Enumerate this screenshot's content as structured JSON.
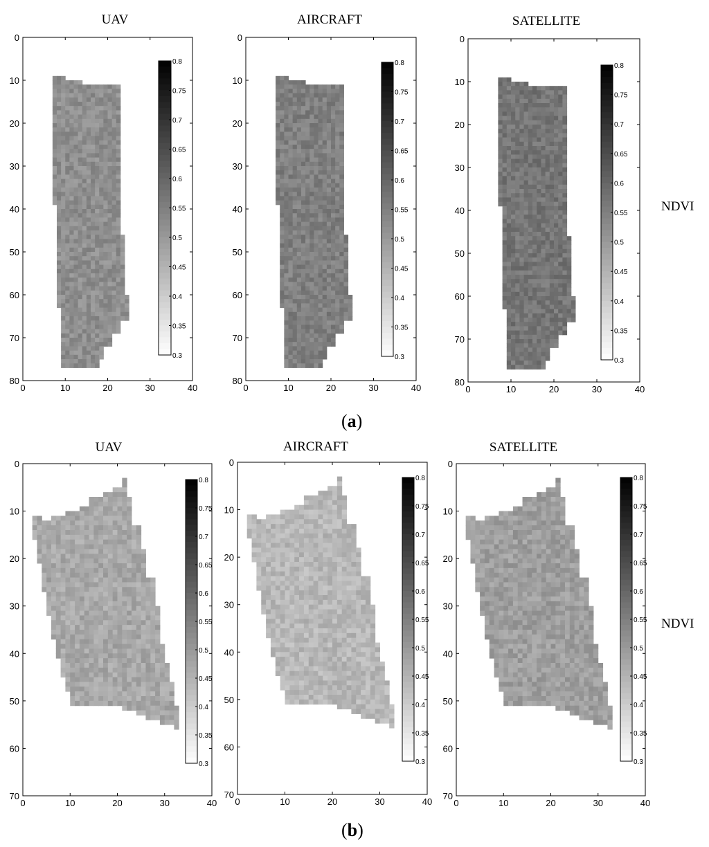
{
  "sections": [
    {
      "label": "a",
      "side_label": "NDVI"
    },
    {
      "label": "b",
      "side_label": "NDVI"
    }
  ],
  "chart_data": [
    {
      "type": "heatmap",
      "section": "a",
      "title": "UAV",
      "xlim": [
        0,
        40
      ],
      "ylim": [
        80,
        0
      ],
      "xticks": [
        0,
        10,
        20,
        30,
        40
      ],
      "yticks": [
        0,
        10,
        20,
        30,
        40,
        50,
        60,
        70,
        80
      ],
      "colorbar": {
        "range": [
          0.3,
          0.8
        ],
        "ticks": [
          "0.8",
          "0.75",
          "0.7",
          "0.65",
          "0.6",
          "0.55",
          "0.5",
          "0.45",
          "0.4",
          "0.35",
          "0.3"
        ],
        "colormap": "gray-reversed"
      },
      "mean_ndvi": 0.52,
      "grid": false
    },
    {
      "type": "heatmap",
      "section": "a",
      "title": "AIRCRAFT",
      "xlim": [
        0,
        40
      ],
      "ylim": [
        80,
        0
      ],
      "xticks": [
        0,
        10,
        20,
        30,
        40
      ],
      "yticks": [
        0,
        10,
        20,
        30,
        40,
        50,
        60,
        70,
        80
      ],
      "colorbar": {
        "range": [
          0.3,
          0.8
        ],
        "ticks": [
          "0.8",
          "0.75",
          "0.7",
          "0.65",
          "0.6",
          "0.55",
          "0.5",
          "0.45",
          "0.4",
          "0.35",
          "0.3"
        ],
        "colormap": "gray-reversed"
      },
      "mean_ndvi": 0.55,
      "grid": false
    },
    {
      "type": "heatmap",
      "section": "a",
      "title": "SATELLITE",
      "xlim": [
        0,
        40
      ],
      "ylim": [
        80,
        0
      ],
      "xticks": [
        0,
        10,
        20,
        30,
        40
      ],
      "yticks": [
        0,
        10,
        20,
        30,
        40,
        50,
        60,
        70,
        80
      ],
      "colorbar": {
        "range": [
          0.3,
          0.8
        ],
        "ticks": [
          "0.8",
          "0.75",
          "0.7",
          "0.65",
          "0.6",
          "0.55",
          "0.5",
          "0.45",
          "0.4",
          "0.35",
          "0.3"
        ],
        "colormap": "gray-reversed"
      },
      "mean_ndvi": 0.57,
      "grid": false
    },
    {
      "type": "heatmap",
      "section": "b",
      "title": "UAV",
      "xlim": [
        0,
        40
      ],
      "ylim": [
        70,
        0
      ],
      "xticks": [
        0,
        10,
        20,
        30,
        40
      ],
      "yticks": [
        0,
        10,
        20,
        30,
        40,
        50,
        60,
        70
      ],
      "colorbar": {
        "range": [
          0.3,
          0.8
        ],
        "ticks": [
          "0.8",
          "0.75",
          "0.7",
          "0.65",
          "0.6",
          "0.55",
          "0.5",
          "0.45",
          "0.4",
          "0.35",
          "0.3"
        ],
        "colormap": "gray-reversed"
      },
      "mean_ndvi": 0.47,
      "grid": false
    },
    {
      "type": "heatmap",
      "section": "b",
      "title": "AIRCRAFT",
      "xlim": [
        0,
        40
      ],
      "ylim": [
        70,
        0
      ],
      "xticks": [
        0,
        10,
        20,
        30,
        40
      ],
      "yticks": [
        0,
        10,
        20,
        30,
        40,
        50,
        60,
        70
      ],
      "colorbar": {
        "range": [
          0.3,
          0.8
        ],
        "ticks": [
          "0.8",
          "0.75",
          "0.7",
          "0.65",
          "0.6",
          "0.55",
          "0.5",
          "0.45",
          "0.4",
          "0.35",
          "0.3"
        ],
        "colormap": "gray-reversed"
      },
      "mean_ndvi": 0.44,
      "grid": false
    },
    {
      "type": "heatmap",
      "section": "b",
      "title": "SATELLITE",
      "xlim": [
        0,
        40
      ],
      "ylim": [
        70,
        0
      ],
      "xticks": [
        0,
        10,
        20,
        30,
        40
      ],
      "yticks": [
        0,
        10,
        20,
        30,
        40,
        50,
        60,
        70
      ],
      "colorbar": {
        "range": [
          0.3,
          0.8
        ],
        "ticks": [
          "0.8",
          "0.75",
          "0.7",
          "0.65",
          "0.6",
          "0.55",
          "0.5",
          "0.45",
          "0.4",
          "0.35",
          "0.3"
        ],
        "colormap": "gray-reversed"
      },
      "mean_ndvi": 0.49,
      "grid": false
    }
  ]
}
